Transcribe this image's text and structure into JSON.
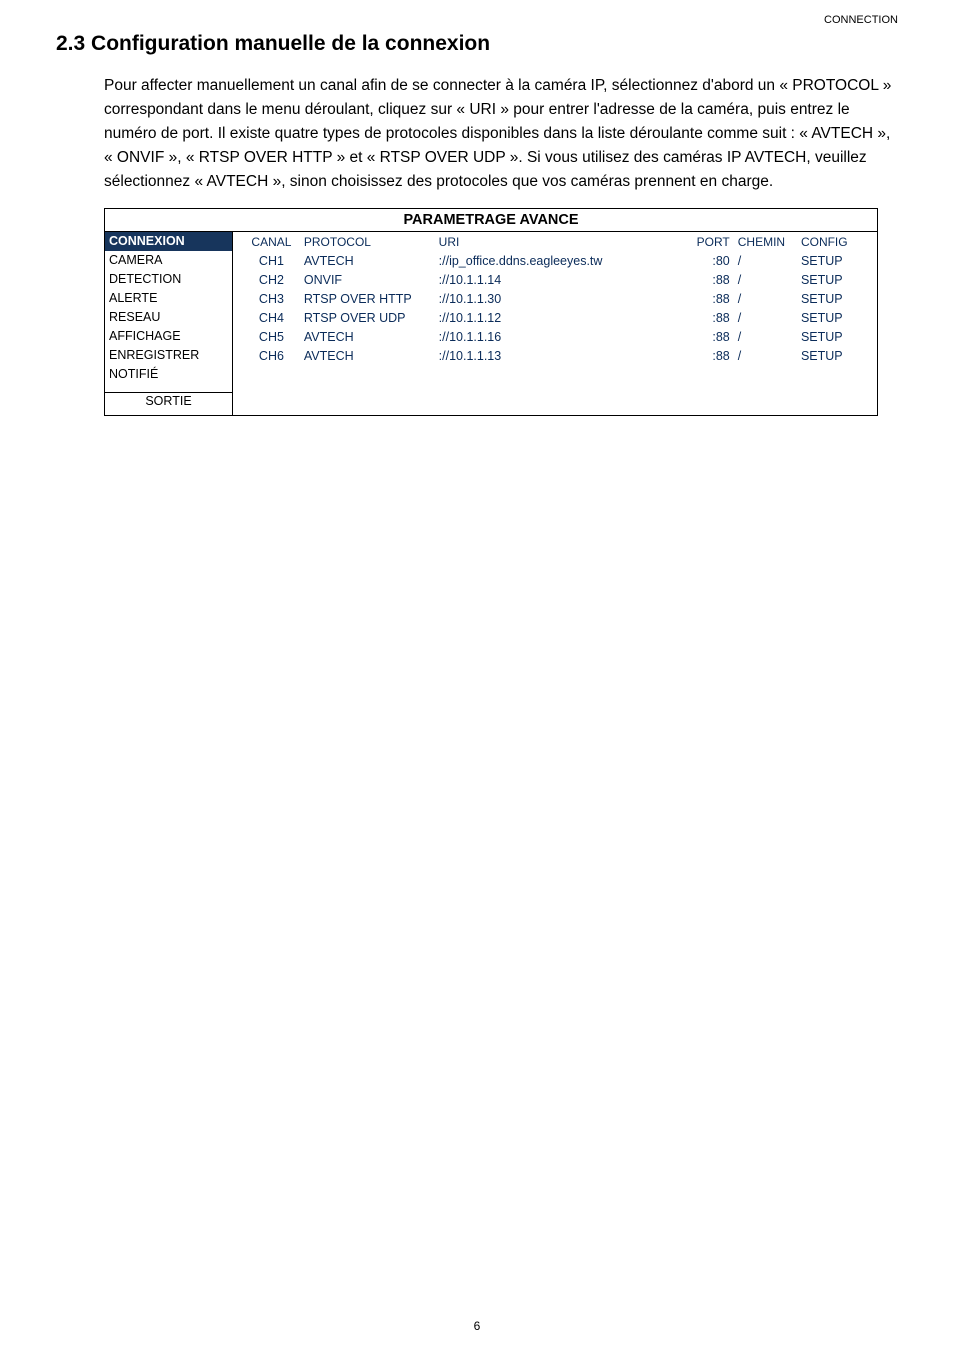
{
  "meta": {
    "corner_label": "CONNECTION",
    "page_number": "6"
  },
  "heading": "2.3 Configuration manuelle de la connexion",
  "paragraph": "Pour affecter manuellement un canal afin de se connecter à la caméra IP, sélectionnez d'abord un « PROTOCOL » correspondant dans le menu déroulant, cliquez sur « URI » pour entrer l'adresse de la caméra, puis entrez le numéro de port. Il existe quatre types de protocoles disponibles dans la liste déroulante comme suit : « AVTECH », « ONVIF », « RTSP OVER HTTP » et « RTSP OVER UDP ». Si vous utilisez des caméras IP AVTECH, veuillez sélectionnez « AVTECH », sinon choisissez des protocoles que vos caméras prennent en charge.",
  "table": {
    "title": "PARAMETRAGE AVANCE",
    "side": {
      "header": "CONNEXION",
      "items": [
        "CAMERA",
        "DETECTION",
        "ALERTE",
        "RESEAU",
        "AFFICHAGE",
        "ENREGISTRER",
        "NOTIFIÉ"
      ],
      "footer": "SORTIE"
    },
    "grid": {
      "headers": [
        "CANAL",
        "PROTOCOL",
        "URI",
        "PORT",
        "CHEMIN",
        "CONFIG"
      ],
      "rows": [
        {
          "canal": "CH1",
          "protocol": "AVTECH",
          "uri": "://ip_office.ddns.eagleeyes.tw",
          "port": ":80",
          "chemin": "/",
          "config": "SETUP"
        },
        {
          "canal": "CH2",
          "protocol": "ONVIF",
          "uri": "://10.1.1.14",
          "port": ":88",
          "chemin": "/",
          "config": "SETUP"
        },
        {
          "canal": "CH3",
          "protocol": "RTSP OVER HTTP",
          "uri": "://10.1.1.30",
          "port": ":88",
          "chemin": "/",
          "config": "SETUP"
        },
        {
          "canal": "CH4",
          "protocol": "RTSP OVER UDP",
          "uri": "://10.1.1.12",
          "port": ":88",
          "chemin": "/",
          "config": "SETUP"
        },
        {
          "canal": "CH5",
          "protocol": "AVTECH",
          "uri": "://10.1.1.16",
          "port": ":88",
          "chemin": "/",
          "config": "SETUP"
        },
        {
          "canal": "CH6",
          "protocol": "AVTECH",
          "uri": "://10.1.1.13",
          "port": ":88",
          "chemin": "/",
          "config": "SETUP"
        }
      ]
    }
  },
  "styles": {
    "side_header_bg": "#17355c",
    "side_header_fg": "#ffffff",
    "grid_text_color": "#0a2b59"
  }
}
